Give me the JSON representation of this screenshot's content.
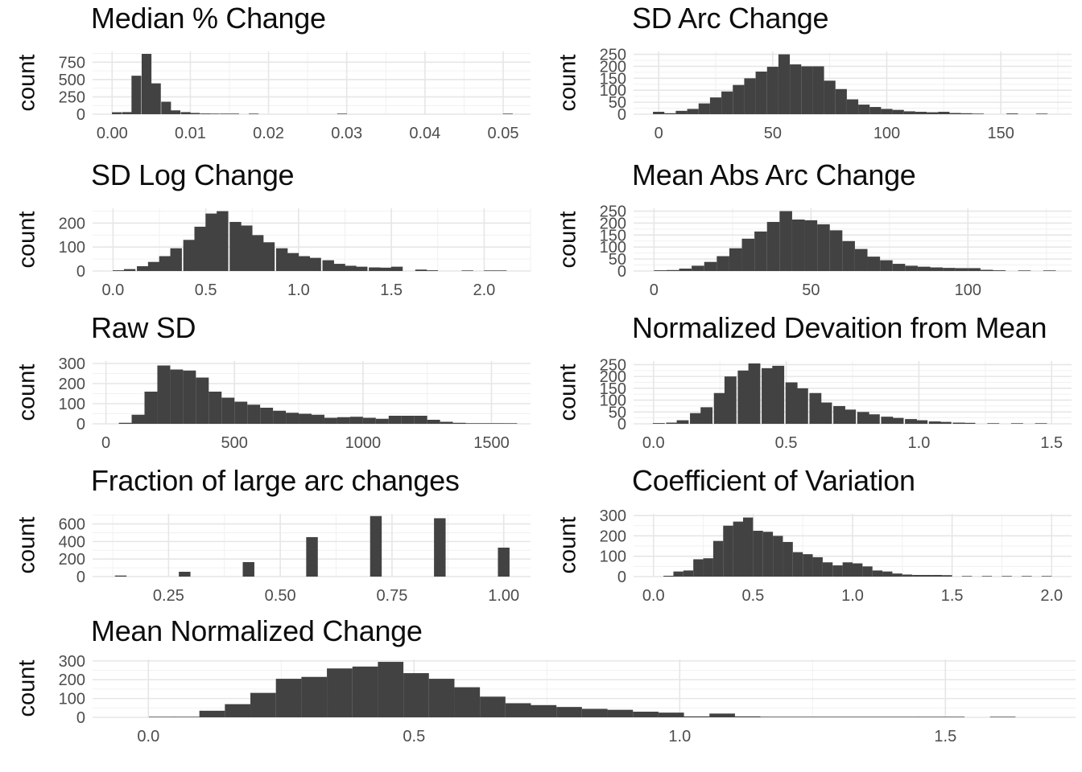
{
  "style": {
    "background": "#ffffff",
    "bar_color": "#424242",
    "grid_major_color": "#e6e6e6",
    "grid_minor_color": "#f1f1f1",
    "tick_label_color": "#4d4d4d",
    "title_color": "#0d0d0d"
  },
  "chart_data": [
    {
      "type": "bar",
      "subtype": "histogram",
      "title": "Median % Change",
      "ylabel": "count",
      "xlim": [
        -0.0025,
        0.0535
      ],
      "ylim": [
        0,
        905
      ],
      "x_tick_values": [
        0.0,
        0.01,
        0.02,
        0.03,
        0.04,
        0.05
      ],
      "x_tick_labels": [
        "0.00",
        "0.01",
        "0.02",
        "0.03",
        "0.04",
        "0.05"
      ],
      "y_tick_values": [
        0,
        250,
        500,
        750
      ],
      "y_tick_labels": [
        "0",
        "250",
        "500",
        "750"
      ],
      "binwidth": 0.00125,
      "bars": [
        [
          0.0006,
          28
        ],
        [
          0.0019,
          30
        ],
        [
          0.0031,
          555
        ],
        [
          0.0044,
          870
        ],
        [
          0.0056,
          445
        ],
        [
          0.0069,
          180
        ],
        [
          0.0081,
          55
        ],
        [
          0.0094,
          30
        ],
        [
          0.0106,
          18
        ],
        [
          0.0119,
          10
        ],
        [
          0.0131,
          7
        ],
        [
          0.0144,
          5
        ],
        [
          0.0156,
          4
        ],
        [
          0.0181,
          5
        ],
        [
          0.0294,
          6
        ],
        [
          0.0506,
          4
        ]
      ]
    },
    {
      "type": "bar",
      "subtype": "histogram",
      "title": "SD Arc Change",
      "ylabel": "count",
      "xlim": [
        -11,
        181
      ],
      "ylim": [
        0,
        262
      ],
      "x_tick_values": [
        0,
        50,
        100,
        150
      ],
      "x_tick_labels": [
        "0",
        "50",
        "100",
        "150"
      ],
      "y_tick_values": [
        0,
        50,
        100,
        150,
        200,
        250
      ],
      "y_tick_labels": [
        "0",
        "50",
        "100",
        "150",
        "200",
        "250"
      ],
      "binwidth": 5,
      "bars": [
        [
          0,
          10
        ],
        [
          5,
          4
        ],
        [
          10,
          14
        ],
        [
          15,
          22
        ],
        [
          20,
          45
        ],
        [
          25,
          70
        ],
        [
          30,
          95
        ],
        [
          35,
          122
        ],
        [
          40,
          150
        ],
        [
          45,
          178
        ],
        [
          50,
          198
        ],
        [
          55,
          250
        ],
        [
          60,
          208
        ],
        [
          65,
          200
        ],
        [
          70,
          200
        ],
        [
          75,
          140
        ],
        [
          80,
          105
        ],
        [
          85,
          62
        ],
        [
          90,
          40
        ],
        [
          95,
          30
        ],
        [
          100,
          22
        ],
        [
          105,
          18
        ],
        [
          110,
          12
        ],
        [
          115,
          10
        ],
        [
          120,
          8
        ],
        [
          125,
          10
        ],
        [
          130,
          5
        ],
        [
          135,
          4
        ],
        [
          140,
          2
        ],
        [
          155,
          3
        ],
        [
          168,
          2
        ]
      ]
    },
    {
      "type": "bar",
      "subtype": "histogram",
      "title": "SD Log Change",
      "ylabel": "count",
      "xlim": [
        -0.11,
        2.25
      ],
      "ylim": [
        0,
        262
      ],
      "x_tick_values": [
        0.0,
        0.5,
        1.0,
        1.5,
        2.0
      ],
      "x_tick_labels": [
        "0.0",
        "0.5",
        "1.0",
        "1.5",
        "2.0"
      ],
      "y_tick_values": [
        0,
        100,
        200
      ],
      "y_tick_labels": [
        "0",
        "100",
        "200"
      ],
      "binwidth": 0.0625,
      "bars": [
        [
          0.03,
          3
        ],
        [
          0.09,
          8
        ],
        [
          0.16,
          20
        ],
        [
          0.22,
          38
        ],
        [
          0.28,
          62
        ],
        [
          0.34,
          95
        ],
        [
          0.41,
          130
        ],
        [
          0.47,
          185
        ],
        [
          0.53,
          240
        ],
        [
          0.59,
          250
        ],
        [
          0.66,
          205
        ],
        [
          0.72,
          190
        ],
        [
          0.78,
          150
        ],
        [
          0.84,
          120
        ],
        [
          0.91,
          95
        ],
        [
          0.97,
          75
        ],
        [
          1.03,
          62
        ],
        [
          1.09,
          55
        ],
        [
          1.16,
          45
        ],
        [
          1.22,
          30
        ],
        [
          1.28,
          22
        ],
        [
          1.34,
          18
        ],
        [
          1.41,
          15
        ],
        [
          1.47,
          14
        ],
        [
          1.53,
          18
        ],
        [
          1.66,
          6
        ],
        [
          1.72,
          3
        ],
        [
          1.91,
          2
        ],
        [
          2.03,
          2
        ],
        [
          2.09,
          2
        ]
      ]
    },
    {
      "type": "bar",
      "subtype": "histogram",
      "title": "Mean Abs Arc Change",
      "ylabel": "count",
      "xlim": [
        -6.5,
        133
      ],
      "ylim": [
        0,
        262
      ],
      "x_tick_values": [
        0,
        50,
        100
      ],
      "x_tick_labels": [
        "0",
        "50",
        "100"
      ],
      "y_tick_values": [
        0,
        50,
        100,
        150,
        200,
        250
      ],
      "y_tick_labels": [
        "0",
        "50",
        "100",
        "150",
        "200",
        "250"
      ],
      "binwidth": 4,
      "bars": [
        [
          2,
          3
        ],
        [
          6,
          4
        ],
        [
          10,
          10
        ],
        [
          14,
          22
        ],
        [
          18,
          38
        ],
        [
          22,
          62
        ],
        [
          26,
          95
        ],
        [
          30,
          135
        ],
        [
          34,
          165
        ],
        [
          38,
          205
        ],
        [
          42,
          250
        ],
        [
          46,
          215
        ],
        [
          50,
          212
        ],
        [
          54,
          195
        ],
        [
          58,
          170
        ],
        [
          62,
          125
        ],
        [
          66,
          92
        ],
        [
          70,
          60
        ],
        [
          74,
          45
        ],
        [
          78,
          30
        ],
        [
          82,
          22
        ],
        [
          86,
          18
        ],
        [
          90,
          15
        ],
        [
          94,
          13
        ],
        [
          98,
          12
        ],
        [
          102,
          12
        ],
        [
          106,
          5
        ],
        [
          110,
          3
        ],
        [
          118,
          2
        ],
        [
          126,
          2
        ]
      ]
    },
    {
      "type": "bar",
      "subtype": "histogram",
      "title": "Raw SD",
      "ylabel": "count",
      "xlim": [
        -52,
        1652
      ],
      "ylim": [
        0,
        312
      ],
      "x_tick_values": [
        0,
        500,
        1000,
        1500
      ],
      "x_tick_labels": [
        "0",
        "500",
        "1000",
        "1500"
      ],
      "y_tick_values": [
        0,
        100,
        200,
        300
      ],
      "y_tick_labels": [
        "0",
        "100",
        "200",
        "300"
      ],
      "binwidth": 50,
      "bars": [
        [
          75,
          5
        ],
        [
          125,
          45
        ],
        [
          175,
          160
        ],
        [
          225,
          290
        ],
        [
          275,
          270
        ],
        [
          325,
          265
        ],
        [
          375,
          230
        ],
        [
          425,
          160
        ],
        [
          475,
          130
        ],
        [
          525,
          110
        ],
        [
          575,
          95
        ],
        [
          625,
          80
        ],
        [
          675,
          65
        ],
        [
          725,
          55
        ],
        [
          775,
          50
        ],
        [
          825,
          45
        ],
        [
          875,
          30
        ],
        [
          925,
          33
        ],
        [
          975,
          35
        ],
        [
          1025,
          30
        ],
        [
          1075,
          25
        ],
        [
          1125,
          40
        ],
        [
          1175,
          40
        ],
        [
          1225,
          40
        ],
        [
          1275,
          20
        ],
        [
          1325,
          10
        ],
        [
          1375,
          5
        ],
        [
          1425,
          3
        ],
        [
          1475,
          3
        ],
        [
          1525,
          3
        ],
        [
          1575,
          2
        ]
      ]
    },
    {
      "type": "bar",
      "subtype": "histogram",
      "title": "Normalized Devaition from Mean",
      "ylabel": "count",
      "xlim": [
        -0.075,
        1.575
      ],
      "ylim": [
        0,
        265
      ],
      "x_tick_values": [
        0.0,
        0.5,
        1.0,
        1.5
      ],
      "x_tick_labels": [
        "0.0",
        "0.5",
        "1.0",
        "1.5"
      ],
      "y_tick_values": [
        0,
        50,
        100,
        150,
        200,
        250
      ],
      "y_tick_labels": [
        "0",
        "50",
        "100",
        "150",
        "200",
        "250"
      ],
      "binwidth": 0.045,
      "bars": [
        [
          0.02,
          3
        ],
        [
          0.07,
          5
        ],
        [
          0.11,
          15
        ],
        [
          0.16,
          45
        ],
        [
          0.2,
          70
        ],
        [
          0.25,
          130
        ],
        [
          0.29,
          200
        ],
        [
          0.34,
          225
        ],
        [
          0.38,
          255
        ],
        [
          0.43,
          235
        ],
        [
          0.47,
          245
        ],
        [
          0.52,
          175
        ],
        [
          0.56,
          150
        ],
        [
          0.61,
          130
        ],
        [
          0.65,
          90
        ],
        [
          0.7,
          75
        ],
        [
          0.74,
          60
        ],
        [
          0.79,
          50
        ],
        [
          0.83,
          40
        ],
        [
          0.88,
          30
        ],
        [
          0.92,
          25
        ],
        [
          0.97,
          20
        ],
        [
          1.01,
          15
        ],
        [
          1.06,
          10
        ],
        [
          1.1,
          8
        ],
        [
          1.15,
          5
        ],
        [
          1.19,
          4
        ],
        [
          1.28,
          2
        ],
        [
          1.37,
          2
        ],
        [
          1.46,
          2
        ]
      ]
    },
    {
      "type": "bar",
      "subtype": "histogram",
      "title": "Fraction of large arc changes",
      "ylabel": "count",
      "xlim": [
        0.08,
        1.06
      ],
      "ylim": [
        0,
        715
      ],
      "x_tick_values": [
        0.25,
        0.5,
        0.75,
        1.0
      ],
      "x_tick_labels": [
        "0.25",
        "0.50",
        "0.75",
        "1.00"
      ],
      "y_tick_values": [
        0,
        200,
        400,
        600
      ],
      "y_tick_labels": [
        "0",
        "200",
        "400",
        "600"
      ],
      "binwidth": 0.026,
      "bars": [
        [
          0.143,
          12
        ],
        [
          0.286,
          55
        ],
        [
          0.429,
          165
        ],
        [
          0.571,
          450
        ],
        [
          0.714,
          690
        ],
        [
          0.857,
          665
        ],
        [
          1.0,
          330
        ]
      ]
    },
    {
      "type": "bar",
      "subtype": "histogram",
      "title": "Coefficient of Variation",
      "ylabel": "count",
      "xlim": [
        -0.1,
        2.1
      ],
      "ylim": [
        0,
        308
      ],
      "x_tick_values": [
        0.0,
        0.5,
        1.0,
        1.5,
        2.0
      ],
      "x_tick_labels": [
        "0.0",
        "0.5",
        "1.0",
        "1.5",
        "2.0"
      ],
      "y_tick_values": [
        0,
        100,
        200,
        300
      ],
      "y_tick_labels": [
        "0",
        "100",
        "200",
        "300"
      ],
      "binwidth": 0.05,
      "bars": [
        [
          0.075,
          4
        ],
        [
          0.125,
          25
        ],
        [
          0.175,
          30
        ],
        [
          0.225,
          85
        ],
        [
          0.275,
          90
        ],
        [
          0.325,
          175
        ],
        [
          0.375,
          250
        ],
        [
          0.425,
          270
        ],
        [
          0.475,
          290
        ],
        [
          0.525,
          225
        ],
        [
          0.575,
          220
        ],
        [
          0.625,
          200
        ],
        [
          0.675,
          170
        ],
        [
          0.725,
          120
        ],
        [
          0.775,
          110
        ],
        [
          0.825,
          95
        ],
        [
          0.875,
          70
        ],
        [
          0.925,
          55
        ],
        [
          0.975,
          70
        ],
        [
          1.025,
          65
        ],
        [
          1.075,
          50
        ],
        [
          1.125,
          30
        ],
        [
          1.175,
          25
        ],
        [
          1.225,
          15
        ],
        [
          1.275,
          10
        ],
        [
          1.325,
          8
        ],
        [
          1.375,
          8
        ],
        [
          1.425,
          8
        ],
        [
          1.475,
          7
        ],
        [
          1.575,
          2
        ],
        [
          1.675,
          2
        ],
        [
          1.775,
          2
        ],
        [
          1.875,
          2
        ],
        [
          1.975,
          2
        ]
      ]
    },
    {
      "type": "bar",
      "subtype": "histogram",
      "title": "Mean Normalized Change",
      "ylabel": "count",
      "xlim": [
        -0.105,
        1.745
      ],
      "ylim": [
        0,
        308
      ],
      "x_tick_values": [
        0.0,
        0.5,
        1.0,
        1.5
      ],
      "x_tick_labels": [
        "0.0",
        "0.5",
        "1.0",
        "1.5"
      ],
      "y_tick_values": [
        0,
        100,
        200,
        300
      ],
      "y_tick_labels": [
        "0",
        "100",
        "200",
        "300"
      ],
      "binwidth": 0.048,
      "bars": [
        [
          0.025,
          3
        ],
        [
          0.072,
          3
        ],
        [
          0.12,
          35
        ],
        [
          0.168,
          70
        ],
        [
          0.216,
          130
        ],
        [
          0.264,
          205
        ],
        [
          0.312,
          215
        ],
        [
          0.36,
          260
        ],
        [
          0.408,
          270
        ],
        [
          0.456,
          295
        ],
        [
          0.504,
          235
        ],
        [
          0.552,
          205
        ],
        [
          0.6,
          160
        ],
        [
          0.648,
          110
        ],
        [
          0.696,
          75
        ],
        [
          0.744,
          65
        ],
        [
          0.792,
          55
        ],
        [
          0.84,
          45
        ],
        [
          0.888,
          40
        ],
        [
          0.936,
          30
        ],
        [
          0.984,
          25
        ],
        [
          1.032,
          5
        ],
        [
          1.08,
          20
        ],
        [
          1.128,
          5
        ],
        [
          1.176,
          3
        ],
        [
          1.224,
          3
        ],
        [
          1.272,
          2
        ],
        [
          1.32,
          2
        ],
        [
          1.368,
          2
        ],
        [
          1.416,
          2
        ],
        [
          1.464,
          2
        ],
        [
          1.512,
          2
        ],
        [
          1.608,
          2
        ]
      ]
    }
  ]
}
